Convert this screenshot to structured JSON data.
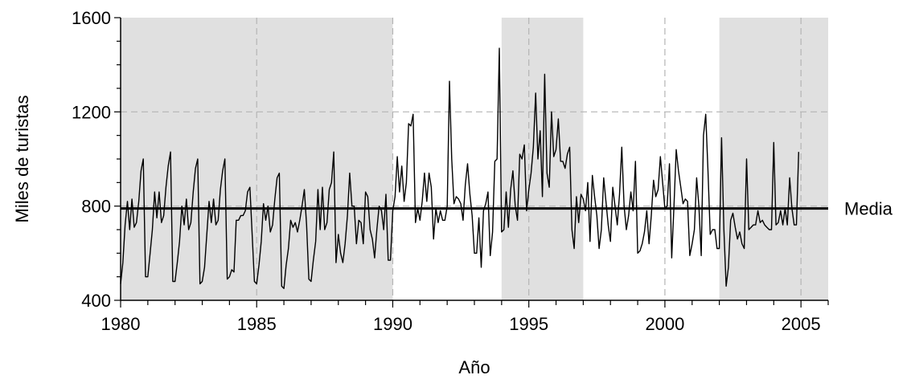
{
  "chart_data": {
    "type": "line",
    "title": "",
    "xlabel": "Año",
    "ylabel": "Miles de turistas",
    "xlim": [
      1980,
      2006
    ],
    "ylim": [
      400,
      1600
    ],
    "x_ticks": [
      "1980",
      "1985",
      "1990",
      "1995",
      "2000",
      "2005"
    ],
    "y_ticks": [
      "400",
      "800",
      "1200",
      "1600"
    ],
    "grid": "dashed, every 5 years and every 400",
    "shaded_periods": [
      [
        1980,
        1990
      ],
      [
        1994,
        1997
      ],
      [
        2002,
        2006
      ]
    ],
    "reference_line": {
      "label": "Media",
      "value": 790
    },
    "series": [
      {
        "x_start": 1980,
        "step": "monthly",
        "values": [
          470,
          560,
          720,
          820,
          700,
          830,
          710,
          730,
          820,
          950,
          1000,
          500,
          500,
          600,
          700,
          860,
          750,
          860,
          730,
          760,
          880,
          970,
          1030,
          480,
          480,
          560,
          650,
          800,
          720,
          830,
          700,
          730,
          860,
          960,
          1000,
          470,
          480,
          540,
          680,
          820,
          730,
          830,
          720,
          740,
          870,
          950,
          1000,
          490,
          500,
          530,
          520,
          740,
          740,
          760,
          760,
          780,
          860,
          880,
          680,
          480,
          470,
          550,
          650,
          810,
          740,
          800,
          690,
          720,
          830,
          920,
          940,
          460,
          450,
          550,
          620,
          740,
          710,
          730,
          690,
          740,
          800,
          870,
          720,
          490,
          480,
          570,
          650,
          870,
          700,
          880,
          700,
          730,
          870,
          900,
          1030,
          560,
          680,
          600,
          560,
          640,
          760,
          940,
          800,
          800,
          640,
          740,
          730,
          640,
          860,
          840,
          700,
          660,
          580,
          700,
          800,
          780,
          700,
          850,
          570,
          570,
          780,
          840,
          1010,
          860,
          970,
          820,
          900,
          1150,
          1140,
          1190,
          730,
          790,
          740,
          820,
          940,
          820,
          940,
          880,
          660,
          790,
          730,
          780,
          740,
          740,
          800,
          1330,
          1000,
          810,
          840,
          830,
          810,
          740,
          890,
          980,
          850,
          760,
          600,
          600,
          750,
          540,
          780,
          810,
          860,
          590,
          690,
          990,
          1000,
          1470,
          690,
          700,
          860,
          710,
          870,
          950,
          800,
          740,
          1020,
          1000,
          1060,
          780,
          870,
          940,
          1050,
          1280,
          1000,
          1120,
          840,
          1360,
          940,
          880,
          1200,
          1010,
          1040,
          1170,
          990,
          990,
          960,
          1020,
          1050,
          700,
          620,
          840,
          730,
          850,
          830,
          780,
          900,
          650,
          930,
          840,
          760,
          620,
          700,
          920,
          820,
          720,
          650,
          880,
          800,
          720,
          850,
          1050,
          800,
          700,
          760,
          860,
          780,
          990,
          600,
          610,
          640,
          690,
          780,
          640,
          760,
          910,
          840,
          870,
          1010,
          900,
          790,
          800,
          980,
          580,
          800,
          1040,
          950,
          880,
          810,
          830,
          820,
          590,
          640,
          700,
          920,
          800,
          590,
          1100,
          1190,
          950,
          680,
          700,
          700,
          620,
          620,
          1090,
          700,
          460,
          540,
          740,
          770,
          710,
          660,
          690,
          640,
          620,
          1000,
          700,
          710,
          720,
          720,
          780,
          730,
          740,
          720,
          710,
          700,
          700,
          1070,
          720,
          730,
          780,
          720,
          790,
          720,
          920,
          790,
          720,
          720,
          1030
        ]
      }
    ]
  },
  "colors": {
    "shade": "#e0e0e0",
    "grid": "#b4b4b4",
    "line": "#000000"
  }
}
